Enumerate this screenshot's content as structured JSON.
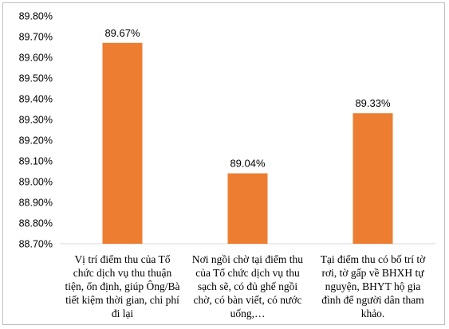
{
  "chart_data": {
    "type": "bar",
    "categories": [
      [
        "Vị trí điểm thu của Tổ",
        "chức dịch vụ thu thuận",
        "tiện, ổn định, giúp Ông/Bà",
        "tiết kiệm thời gian, chi phí",
        "đi lại"
      ],
      [
        "Nơi ngồi chờ tại điểm thu",
        "của Tổ chức dịch vụ thu",
        "sạch sẽ, có đủ ghế ngồi",
        "chờ, có bàn viết, có nước",
        "uống,…"
      ],
      [
        "Tại điểm thu có bố trí tờ",
        "rơi, tờ gấp về BHXH tự",
        "nguyện, BHYT hộ gia",
        "đình để người dân tham",
        "khảo."
      ]
    ],
    "values": [
      89.67,
      89.04,
      89.33
    ],
    "data_labels": [
      "89.67%",
      "89.04%",
      "89.33%"
    ],
    "y_ticks": [
      "88.70%",
      "88.80%",
      "88.90%",
      "89.00%",
      "89.10%",
      "89.20%",
      "89.30%",
      "89.40%",
      "89.50%",
      "89.60%",
      "89.70%",
      "89.80%"
    ],
    "ylim": [
      88.7,
      89.8
    ],
    "grid": false,
    "bar_color": "#ed7d31",
    "title": "",
    "xlabel": "",
    "ylabel": ""
  }
}
